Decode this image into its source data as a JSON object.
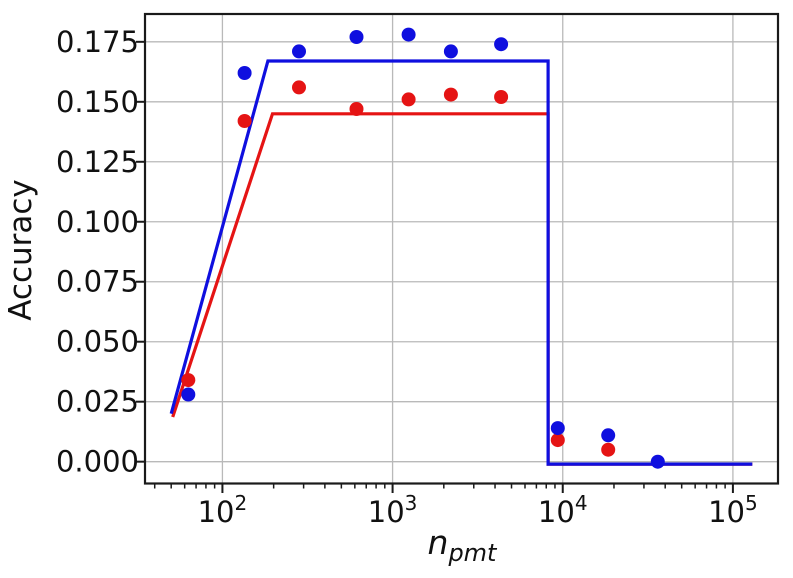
{
  "chart_data": {
    "type": "scatter",
    "title": "",
    "xlabel_base": "n",
    "xlabel_sub": "pmt",
    "ylabel": "Accuracy",
    "x_scale": "log10",
    "xlim_log10": [
      1.545,
      5.265
    ],
    "ylim": [
      -0.0091,
      0.1866
    ],
    "grid": true,
    "legend": false,
    "x_major_ticks": [
      100,
      1000,
      10000,
      100000
    ],
    "x_major_tick_labels": [
      {
        "base": "10",
        "exp": "2"
      },
      {
        "base": "10",
        "exp": "3"
      },
      {
        "base": "10",
        "exp": "4"
      },
      {
        "base": "10",
        "exp": "5"
      }
    ],
    "x_minor_ticks": [
      40,
      50,
      60,
      70,
      80,
      90,
      200,
      300,
      400,
      500,
      600,
      700,
      800,
      900,
      2000,
      3000,
      4000,
      5000,
      6000,
      7000,
      8000,
      9000,
      20000,
      30000,
      40000,
      50000,
      60000,
      70000,
      80000,
      90000
    ],
    "y_ticks": [
      0.0,
      0.025,
      0.05,
      0.075,
      0.1,
      0.125,
      0.15,
      0.175
    ],
    "y_tick_labels": [
      "0.000",
      "0.025",
      "0.050",
      "0.075",
      "0.100",
      "0.125",
      "0.150",
      "0.175"
    ],
    "colors": {
      "blue": "#0f0fdf",
      "red": "#e51414",
      "grid": "#b9b9b9",
      "spine": "#1a1a1a"
    },
    "series": [
      {
        "name": "red-step-line",
        "kind": "line",
        "color": "#e51414",
        "x": [
          51,
          197,
          8200,
          8200,
          130000
        ],
        "y": [
          0.0186,
          0.145,
          0.145,
          -0.001,
          -0.001
        ]
      },
      {
        "name": "blue-step-line",
        "kind": "line",
        "color": "#0f0fdf",
        "x": [
          50,
          185,
          8200,
          8200,
          130000
        ],
        "y": [
          0.02,
          0.167,
          0.167,
          -0.001,
          -0.001
        ]
      },
      {
        "name": "red-scatter",
        "kind": "scatter",
        "color": "#e51414",
        "x": [
          63,
          135,
          282,
          614,
          1242,
          2200,
          4345,
          9350,
          18500
        ],
        "y": [
          0.034,
          0.142,
          0.156,
          0.147,
          0.151,
          0.153,
          0.152,
          0.009,
          0.005
        ]
      },
      {
        "name": "blue-scatter",
        "kind": "scatter",
        "color": "#0f0fdf",
        "x": [
          63,
          135,
          282,
          614,
          1242,
          2200,
          4345,
          9350,
          18500,
          36200
        ],
        "y": [
          0.028,
          0.162,
          0.171,
          0.177,
          0.178,
          0.171,
          0.174,
          0.014,
          0.011,
          0.0
        ]
      }
    ]
  }
}
